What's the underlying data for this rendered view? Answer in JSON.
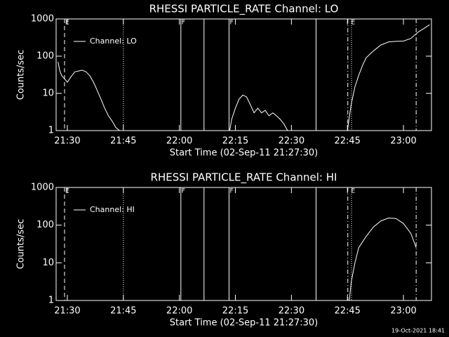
{
  "chart_data": [
    {
      "type": "line",
      "title": "RHESSI PARTICLE_RATE Channel: LO",
      "xlabel": "Start Time (02-Sep-11 21:27:30)",
      "ylabel": "Counts/sec",
      "x": [
        1287.5,
        1288,
        1288.5,
        1289.2,
        1290,
        1291,
        1292,
        1293,
        1294,
        1295,
        1296,
        1297,
        1298,
        1299,
        1300,
        1301,
        1302,
        1303,
        1304,
        1320,
        1333.5,
        1334,
        1335,
        1336,
        1337,
        1338,
        1339,
        1340,
        1341,
        1342,
        1343,
        1344,
        1345,
        1346,
        1347,
        1348,
        1349,
        1355,
        1365,
        1366,
        1367,
        1368,
        1369,
        1370,
        1372,
        1374,
        1376,
        1378,
        1380,
        1382,
        1384,
        1386,
        1387
      ],
      "series": [
        {
          "name": "Channel: LO",
          "color": "#ffffff",
          "values": [
            70,
            40,
            30,
            25,
            20,
            28,
            38,
            40,
            42,
            38,
            30,
            20,
            12,
            7,
            4,
            2.5,
            1.8,
            1.2,
            1,
            null,
            1,
            2,
            4,
            7,
            9,
            8,
            5,
            3,
            4,
            3,
            3.5,
            2.5,
            3,
            2.5,
            2,
            1.5,
            1,
            null,
            1,
            5,
            15,
            30,
            55,
            90,
            140,
            200,
            240,
            250,
            255,
            300,
            450,
            600,
            700
          ]
        }
      ],
      "xlim": [
        1287,
        1387.5
      ],
      "xticks": [
        {
          "value": 1290,
          "label": "21:30"
        },
        {
          "value": 1305,
          "label": "21:45"
        },
        {
          "value": 1320,
          "label": "22:00"
        },
        {
          "value": 1335,
          "label": "22:15"
        },
        {
          "value": 1350,
          "label": "22:30"
        },
        {
          "value": 1365,
          "label": "22:45"
        },
        {
          "value": 1380,
          "label": "23:00"
        }
      ],
      "ylim": [
        1,
        1000
      ],
      "yticks": [
        1,
        10,
        100,
        1000
      ],
      "ylog": true,
      "markers": [
        {
          "x": 1289.25,
          "style": "dashed"
        },
        {
          "x": 1305,
          "style": "dotted"
        },
        {
          "x": 1320.4,
          "style": "solid"
        },
        {
          "x": 1326.6,
          "style": "solid"
        },
        {
          "x": 1333.3,
          "style": "solid"
        },
        {
          "x": 1356.6,
          "style": "solid"
        },
        {
          "x": 1365.1,
          "style": "dashdot"
        },
        {
          "x": 1366.1,
          "style": "dotted"
        },
        {
          "x": 1383.4,
          "style": "dashdot"
        }
      ],
      "flags": [
        {
          "x": 1289.25,
          "label": "E"
        },
        {
          "x": 1320.4,
          "label": "F"
        },
        {
          "x": 1333.3,
          "label": "F"
        },
        {
          "x": 1365.8,
          "label": "E"
        }
      ]
    },
    {
      "type": "line",
      "title": "RHESSI PARTICLE_RATE Channel: HI",
      "xlabel": "Start Time (02-Sep-11 21:27:30)",
      "ylabel": "Counts/sec",
      "x": [
        1365.5,
        1366,
        1367,
        1368,
        1370,
        1372,
        1374,
        1376,
        1378,
        1380,
        1382,
        1383.4
      ],
      "series": [
        {
          "name": "Channel: HI",
          "color": "#ffffff",
          "values": [
            1,
            3,
            10,
            25,
            50,
            90,
            130,
            155,
            150,
            110,
            60,
            25
          ]
        }
      ],
      "xlim": [
        1287,
        1387.5
      ],
      "xticks": [
        {
          "value": 1290,
          "label": "21:30"
        },
        {
          "value": 1305,
          "label": "21:45"
        },
        {
          "value": 1320,
          "label": "22:00"
        },
        {
          "value": 1335,
          "label": "22:15"
        },
        {
          "value": 1350,
          "label": "22:30"
        },
        {
          "value": 1365,
          "label": "22:45"
        },
        {
          "value": 1380,
          "label": "23:00"
        }
      ],
      "ylim": [
        1,
        1000
      ],
      "yticks": [
        1,
        10,
        100,
        1000
      ],
      "ylog": true,
      "markers": [
        {
          "x": 1289.25,
          "style": "dashed"
        },
        {
          "x": 1305,
          "style": "dotted"
        },
        {
          "x": 1320.4,
          "style": "solid"
        },
        {
          "x": 1326.6,
          "style": "solid"
        },
        {
          "x": 1333.3,
          "style": "solid"
        },
        {
          "x": 1356.6,
          "style": "solid"
        },
        {
          "x": 1365.1,
          "style": "dashdot"
        },
        {
          "x": 1366.1,
          "style": "dotted"
        },
        {
          "x": 1383.4,
          "style": "dashdot"
        }
      ],
      "flags": [
        {
          "x": 1289.25,
          "label": "E"
        },
        {
          "x": 1320.4,
          "label": "F"
        },
        {
          "x": 1333.3,
          "label": "F"
        },
        {
          "x": 1365.8,
          "label": "E"
        }
      ]
    }
  ],
  "footer": "19-Oct-2021 18:41"
}
